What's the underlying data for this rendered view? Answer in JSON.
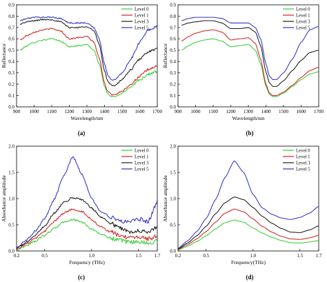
{
  "colors": {
    "Level 0": "#33cc33",
    "Level 1": "#d42020",
    "Level 3": "#1a1a1a",
    "Level 5": "#3030c8"
  },
  "chart_data": [
    {
      "id": "a",
      "panel_label": "(a)",
      "type": "line",
      "noisy": true,
      "xlabel": "Wavelength/nm",
      "ylabel": "Reflectance",
      "xlim": [
        900,
        1700
      ],
      "ylim": [
        0,
        0.9
      ],
      "xticks": [
        900,
        1000,
        1100,
        1200,
        1300,
        1400,
        1500,
        1600,
        1700
      ],
      "xtick_labels": [
        "900",
        "1000",
        "1100",
        "1200",
        "1300",
        "1400",
        "1500",
        "1600",
        "1700"
      ],
      "yticks": [
        0,
        0.1,
        0.2,
        0.3,
        0.4,
        0.5,
        0.6,
        0.7,
        0.8,
        0.9
      ],
      "ytick_labels": [
        "0.0",
        "0.1",
        "0.2",
        "0.3",
        "0.4",
        "0.5",
        "0.6",
        "0.7",
        "0.8",
        "0.9"
      ],
      "legend_position": "top-right",
      "series": [
        {
          "name": "Level 0",
          "x": [
            920,
            960,
            1000,
            1050,
            1100,
            1150,
            1200,
            1250,
            1300,
            1340,
            1370,
            1400,
            1420,
            1440,
            1460,
            1500,
            1550,
            1600,
            1650,
            1700
          ],
          "y": [
            0.5,
            0.54,
            0.57,
            0.59,
            0.6,
            0.58,
            0.53,
            0.54,
            0.55,
            0.5,
            0.38,
            0.18,
            0.11,
            0.09,
            0.09,
            0.12,
            0.18,
            0.24,
            0.29,
            0.31
          ]
        },
        {
          "name": "Level 1",
          "x": [
            920,
            960,
            1000,
            1050,
            1100,
            1150,
            1200,
            1250,
            1300,
            1340,
            1370,
            1400,
            1420,
            1440,
            1460,
            1500,
            1550,
            1600,
            1650,
            1700
          ],
          "y": [
            0.59,
            0.63,
            0.66,
            0.68,
            0.69,
            0.67,
            0.6,
            0.61,
            0.62,
            0.57,
            0.43,
            0.21,
            0.13,
            0.11,
            0.11,
            0.14,
            0.2,
            0.27,
            0.33,
            0.36
          ]
        },
        {
          "name": "Level 3",
          "x": [
            920,
            960,
            1000,
            1050,
            1100,
            1150,
            1200,
            1250,
            1300,
            1340,
            1370,
            1400,
            1420,
            1440,
            1460,
            1500,
            1550,
            1600,
            1650,
            1700
          ],
          "y": [
            0.73,
            0.75,
            0.76,
            0.77,
            0.77,
            0.75,
            0.7,
            0.7,
            0.71,
            0.67,
            0.55,
            0.32,
            0.22,
            0.19,
            0.19,
            0.24,
            0.33,
            0.42,
            0.49,
            0.51
          ]
        },
        {
          "name": "Level 5",
          "x": [
            920,
            960,
            1000,
            1050,
            1100,
            1150,
            1200,
            1250,
            1300,
            1340,
            1370,
            1400,
            1420,
            1440,
            1460,
            1500,
            1550,
            1600,
            1650,
            1700
          ],
          "y": [
            0.76,
            0.78,
            0.79,
            0.79,
            0.79,
            0.78,
            0.74,
            0.74,
            0.74,
            0.7,
            0.6,
            0.38,
            0.27,
            0.24,
            0.24,
            0.3,
            0.42,
            0.57,
            0.68,
            0.71
          ]
        }
      ]
    },
    {
      "id": "b",
      "panel_label": "(b)",
      "type": "line",
      "noisy": false,
      "xlabel": "Wavelength/nm",
      "ylabel": "Reflectance",
      "xlim": [
        900,
        1700
      ],
      "ylim": [
        0,
        0.9
      ],
      "xticks": [
        900,
        1000,
        1100,
        1200,
        1300,
        1400,
        1500,
        1600,
        1700
      ],
      "xtick_labels": [
        "900",
        "1000",
        "1100",
        "1200",
        "1300",
        "1400",
        "1500",
        "1600",
        "1700"
      ],
      "yticks": [
        0,
        0.1,
        0.2,
        0.3,
        0.4,
        0.5,
        0.6,
        0.7,
        0.8,
        0.9
      ],
      "ytick_labels": [
        "0.0",
        "0.1",
        "0.2",
        "0.3",
        "0.4",
        "0.5",
        "0.6",
        "0.7",
        "0.8",
        "0.9"
      ],
      "legend_position": "top-right",
      "series": [
        {
          "name": "Level 0",
          "x": [
            920,
            960,
            1000,
            1050,
            1100,
            1150,
            1200,
            1250,
            1300,
            1340,
            1370,
            1400,
            1420,
            1440,
            1460,
            1500,
            1550,
            1600,
            1650,
            1700
          ],
          "y": [
            0.5,
            0.54,
            0.57,
            0.59,
            0.6,
            0.58,
            0.53,
            0.54,
            0.55,
            0.5,
            0.38,
            0.18,
            0.11,
            0.09,
            0.09,
            0.12,
            0.18,
            0.24,
            0.29,
            0.31
          ]
        },
        {
          "name": "Level 1",
          "x": [
            920,
            960,
            1000,
            1050,
            1100,
            1150,
            1200,
            1250,
            1300,
            1340,
            1370,
            1400,
            1420,
            1440,
            1460,
            1500,
            1550,
            1600,
            1650,
            1700
          ],
          "y": [
            0.58,
            0.62,
            0.65,
            0.67,
            0.68,
            0.66,
            0.59,
            0.6,
            0.61,
            0.56,
            0.42,
            0.2,
            0.12,
            0.1,
            0.1,
            0.13,
            0.19,
            0.26,
            0.32,
            0.35
          ]
        },
        {
          "name": "Level 3",
          "x": [
            920,
            960,
            1000,
            1050,
            1100,
            1150,
            1200,
            1250,
            1300,
            1340,
            1370,
            1400,
            1420,
            1440,
            1460,
            1500,
            1550,
            1600,
            1650,
            1700
          ],
          "y": [
            0.72,
            0.74,
            0.75,
            0.76,
            0.76,
            0.74,
            0.69,
            0.69,
            0.7,
            0.66,
            0.54,
            0.31,
            0.21,
            0.18,
            0.18,
            0.23,
            0.32,
            0.41,
            0.48,
            0.5
          ]
        },
        {
          "name": "Level 5",
          "x": [
            920,
            960,
            1000,
            1050,
            1100,
            1150,
            1200,
            1250,
            1300,
            1340,
            1370,
            1400,
            1420,
            1440,
            1460,
            1500,
            1550,
            1600,
            1650,
            1700
          ],
          "y": [
            0.76,
            0.78,
            0.79,
            0.79,
            0.79,
            0.78,
            0.74,
            0.74,
            0.74,
            0.7,
            0.6,
            0.38,
            0.27,
            0.24,
            0.24,
            0.3,
            0.42,
            0.57,
            0.68,
            0.71
          ]
        }
      ]
    },
    {
      "id": "c",
      "panel_label": "(c)",
      "type": "line",
      "noisy": true,
      "xlabel": "Frequency (THz)",
      "ylabel": "Absorbance amplitude",
      "xlim": [
        0.2,
        1.7
      ],
      "ylim": [
        0,
        2.0
      ],
      "xticks": [
        0.2,
        0.5,
        1.0,
        1.5,
        1.7
      ],
      "xtick_labels": [
        "0.2",
        "0.5",
        "1.0",
        "1.5",
        "1.7"
      ],
      "yticks": [
        0,
        0.5,
        1.0,
        1.5,
        2.0
      ],
      "ytick_labels": [
        "0.0",
        "0.5",
        "1.0",
        "1.5",
        "2.0"
      ],
      "legend_position": "top-right",
      "series": [
        {
          "name": "Level 0",
          "x": [
            0.2,
            0.3,
            0.4,
            0.5,
            0.6,
            0.7,
            0.8,
            0.9,
            1.0,
            1.1,
            1.2,
            1.3,
            1.4,
            1.5,
            1.6,
            1.7
          ],
          "y": [
            0.02,
            0.1,
            0.19,
            0.3,
            0.43,
            0.55,
            0.6,
            0.55,
            0.42,
            0.32,
            0.25,
            0.2,
            0.16,
            0.18,
            0.14,
            0.2
          ]
        },
        {
          "name": "Level 1",
          "x": [
            0.2,
            0.3,
            0.4,
            0.5,
            0.6,
            0.7,
            0.8,
            0.9,
            1.0,
            1.1,
            1.2,
            1.3,
            1.4,
            1.5,
            1.6,
            1.7
          ],
          "y": [
            0.04,
            0.13,
            0.24,
            0.38,
            0.56,
            0.72,
            0.8,
            0.75,
            0.6,
            0.46,
            0.36,
            0.3,
            0.24,
            0.28,
            0.22,
            0.3
          ]
        },
        {
          "name": "Level 3",
          "x": [
            0.2,
            0.3,
            0.4,
            0.5,
            0.6,
            0.7,
            0.8,
            0.9,
            1.0,
            1.1,
            1.2,
            1.3,
            1.4,
            1.5,
            1.6,
            1.7
          ],
          "y": [
            0.05,
            0.16,
            0.3,
            0.48,
            0.72,
            0.92,
            1.02,
            0.98,
            0.82,
            0.65,
            0.53,
            0.44,
            0.36,
            0.4,
            0.35,
            0.45
          ]
        },
        {
          "name": "Level 5",
          "x": [
            0.2,
            0.3,
            0.4,
            0.5,
            0.6,
            0.7,
            0.8,
            0.9,
            1.0,
            1.1,
            1.2,
            1.3,
            1.4,
            1.5,
            1.6,
            1.7
          ],
          "y": [
            0.06,
            0.2,
            0.38,
            0.62,
            0.98,
            1.42,
            1.8,
            1.45,
            1.0,
            0.75,
            0.64,
            0.58,
            0.56,
            0.62,
            0.55,
            0.95
          ]
        }
      ]
    },
    {
      "id": "d",
      "panel_label": "(d)",
      "type": "line",
      "noisy": false,
      "xlabel": "Frequency(THz)",
      "ylabel": "Absorbance amplitude",
      "xlim": [
        0.2,
        1.7
      ],
      "ylim": [
        0,
        2.0
      ],
      "xticks": [
        0.2,
        0.5,
        1.0,
        1.5,
        1.7
      ],
      "xtick_labels": [
        "0.2",
        "0.5",
        "1.0",
        "1.5",
        "1.7"
      ],
      "yticks": [
        0,
        0.5,
        1.0,
        1.5,
        2.0
      ],
      "ytick_labels": [
        "0.0",
        "0.5",
        "1.0",
        "1.5",
        "2.0"
      ],
      "legend_position": "top-right",
      "series": [
        {
          "name": "Level 0",
          "x": [
            0.2,
            0.3,
            0.4,
            0.5,
            0.6,
            0.7,
            0.8,
            0.9,
            1.0,
            1.1,
            1.2,
            1.3,
            1.4,
            1.5,
            1.6,
            1.7
          ],
          "y": [
            0.02,
            0.09,
            0.18,
            0.29,
            0.42,
            0.54,
            0.59,
            0.55,
            0.44,
            0.34,
            0.26,
            0.2,
            0.16,
            0.15,
            0.17,
            0.2
          ]
        },
        {
          "name": "Level 1",
          "x": [
            0.2,
            0.3,
            0.4,
            0.5,
            0.6,
            0.7,
            0.8,
            0.9,
            1.0,
            1.1,
            1.2,
            1.3,
            1.4,
            1.5,
            1.6,
            1.7
          ],
          "y": [
            0.03,
            0.12,
            0.23,
            0.37,
            0.55,
            0.72,
            0.8,
            0.75,
            0.61,
            0.47,
            0.36,
            0.28,
            0.23,
            0.22,
            0.25,
            0.3
          ]
        },
        {
          "name": "Level 3",
          "x": [
            0.2,
            0.3,
            0.4,
            0.5,
            0.6,
            0.7,
            0.8,
            0.9,
            1.0,
            1.1,
            1.2,
            1.3,
            1.4,
            1.5,
            1.6,
            1.7
          ],
          "y": [
            0.04,
            0.15,
            0.29,
            0.47,
            0.71,
            0.92,
            1.03,
            0.98,
            0.83,
            0.66,
            0.53,
            0.43,
            0.36,
            0.35,
            0.4,
            0.48
          ]
        },
        {
          "name": "Level 5",
          "x": [
            0.2,
            0.3,
            0.4,
            0.5,
            0.6,
            0.7,
            0.8,
            0.9,
            1.0,
            1.1,
            1.2,
            1.3,
            1.4,
            1.5,
            1.6,
            1.7
          ],
          "y": [
            0.05,
            0.19,
            0.37,
            0.62,
            0.98,
            1.4,
            1.72,
            1.5,
            1.08,
            0.82,
            0.7,
            0.63,
            0.6,
            0.64,
            0.72,
            0.85
          ]
        }
      ]
    }
  ]
}
